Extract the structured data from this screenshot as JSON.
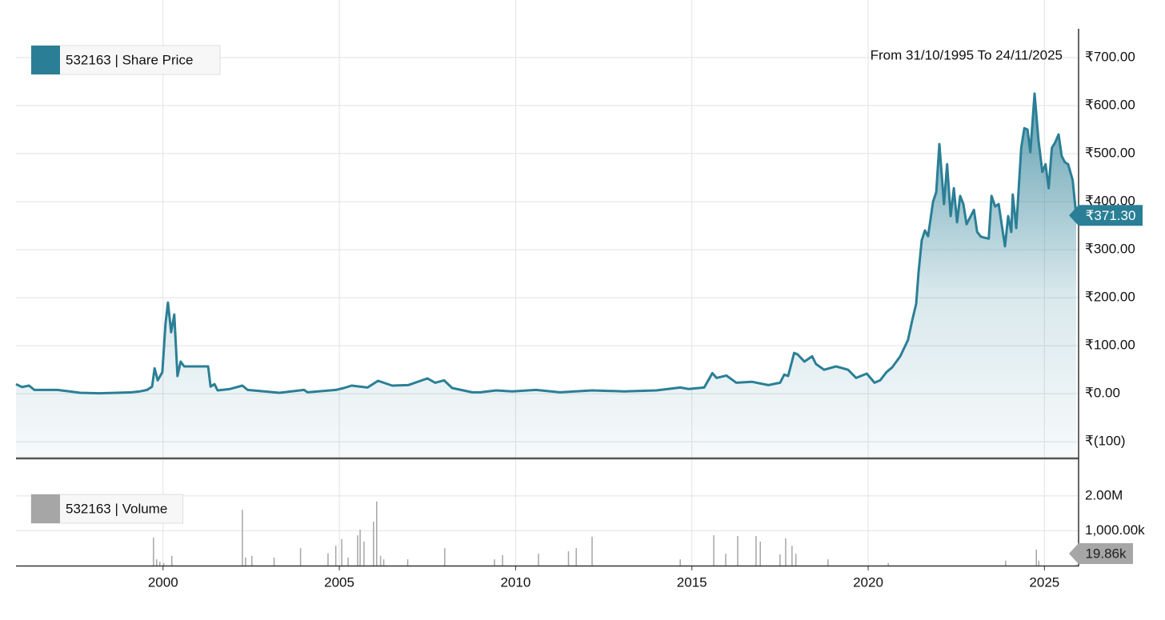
{
  "chart_data": [
    {
      "type": "area",
      "date_range": "From 31/10/1995 To 24/11/2025",
      "x": [
        1995.83,
        1996.0,
        1996.2,
        1996.35,
        1996.45,
        1997.0,
        1997.55,
        1997.65,
        1998.2,
        1998.7,
        1999.1,
        1999.35,
        1999.55,
        1999.69,
        1999.76,
        1999.85,
        1999.98,
        2000.07,
        2000.14,
        2000.23,
        2000.32,
        2000.41,
        2000.5,
        2000.6,
        2001.28,
        2001.35,
        2001.46,
        2001.55,
        2001.9,
        2002.25,
        2002.4,
        2002.87,
        2003.3,
        2004.0,
        2004.1,
        2004.9,
        2005.13,
        2005.35,
        2005.8,
        2006.1,
        2006.5,
        2006.95,
        2007.5,
        2007.72,
        2007.97,
        2008.2,
        2008.77,
        2009.0,
        2009.45,
        2009.9,
        2010.58,
        2011.26,
        2012.17,
        2013.08,
        2013.99,
        2014.67,
        2014.9,
        2015.35,
        2015.58,
        2015.7,
        2015.98,
        2016.26,
        2016.7,
        2017.17,
        2017.5,
        2017.62,
        2017.73,
        2017.9,
        2018.0,
        2018.19,
        2018.41,
        2018.52,
        2018.75,
        2019.09,
        2019.43,
        2019.66,
        2019.96,
        2020.18,
        2020.34,
        2020.52,
        2020.68,
        2020.91,
        2021.13,
        2021.25,
        2021.36,
        2021.43,
        2021.52,
        2021.61,
        2021.7,
        2021.84,
        2021.93,
        2022.02,
        2022.15,
        2022.24,
        2022.34,
        2022.43,
        2022.52,
        2022.61,
        2022.7,
        2022.79,
        2023.0,
        2023.09,
        2023.2,
        2023.42,
        2023.5,
        2023.6,
        2023.7,
        2023.88,
        2023.97,
        2024.06,
        2024.1,
        2024.2,
        2024.34,
        2024.43,
        2024.52,
        2024.6,
        2024.72,
        2024.83,
        2024.94,
        2025.03,
        2025.12,
        2025.21,
        2025.3,
        2025.4,
        2025.49,
        2025.58,
        2025.67,
        2025.8,
        2025.9
      ],
      "series": [
        {
          "name": "532163 | Share Price",
          "color": "#2a7f96",
          "values": [
            20,
            14,
            17,
            8,
            8,
            8,
            3,
            2,
            1,
            2,
            3,
            5,
            8,
            15,
            53,
            28,
            45,
            145,
            190,
            128,
            165,
            37,
            67,
            57,
            57,
            15,
            20,
            7,
            10,
            17,
            8,
            5,
            2,
            8,
            3,
            8,
            12,
            17,
            13,
            27,
            17,
            18,
            32,
            23,
            28,
            12,
            3,
            3,
            7,
            5,
            8,
            3,
            7,
            5,
            7,
            13,
            10,
            13,
            43,
            33,
            38,
            23,
            25,
            18,
            23,
            40,
            37,
            85,
            82,
            67,
            78,
            62,
            50,
            57,
            50,
            33,
            42,
            23,
            28,
            45,
            55,
            78,
            112,
            153,
            187,
            253,
            320,
            340,
            328,
            400,
            420,
            520,
            395,
            478,
            370,
            428,
            357,
            412,
            395,
            353,
            383,
            337,
            327,
            323,
            412,
            390,
            395,
            307,
            370,
            337,
            415,
            345,
            512,
            553,
            550,
            503,
            625,
            528,
            462,
            478,
            428,
            512,
            523,
            540,
            495,
            482,
            478,
            445,
            371.3
          ]
        }
      ],
      "last_value": {
        "value": 371.3,
        "label": "₹371.30"
      },
      "xlim": [
        1995.83,
        2025.9
      ],
      "xticks": [
        2000,
        2005,
        2010,
        2015,
        2020,
        2025
      ],
      "ylim": [
        -133,
        760
      ],
      "yticks": [
        {
          "value": -100,
          "label": "₹(100)"
        },
        {
          "value": 0,
          "label": "₹0.00"
        },
        {
          "value": 100,
          "label": "₹100.00"
        },
        {
          "value": 200,
          "label": "₹200.00"
        },
        {
          "value": 300,
          "label": "₹300.00"
        },
        {
          "value": 400,
          "label": "₹400.00"
        },
        {
          "value": 500,
          "label": "₹500.00"
        },
        {
          "value": 600,
          "label": "₹600.00"
        },
        {
          "value": 700,
          "label": "₹700.00"
        }
      ],
      "grid": true
    },
    {
      "type": "bar",
      "x": [
        1999.73,
        1999.82,
        1999.91,
        2000.02,
        2000.25,
        2002.25,
        2002.34,
        2002.52,
        2003.15,
        2003.9,
        2004.68,
        2004.9,
        2005.07,
        2005.25,
        2005.52,
        2005.59,
        2005.7,
        2005.97,
        2006.06,
        2006.17,
        2006.26,
        2006.94,
        2007.99,
        2009.4,
        2009.63,
        2010.65,
        2011.5,
        2011.72,
        2012.17,
        2014.67,
        2015.62,
        2015.96,
        2016.3,
        2016.82,
        2016.94,
        2017.5,
        2017.66,
        2017.84,
        2017.95,
        2018.86,
        2020.57,
        2023.9,
        2024.77,
        2024.84,
        2025.9
      ],
      "series": [
        {
          "name": "532163 | Volume",
          "color": "#a6a6a6",
          "values": [
            800000,
            180000,
            110000,
            70000,
            280000,
            1600000,
            230000,
            280000,
            230000,
            500000,
            350000,
            570000,
            760000,
            230000,
            870000,
            1030000,
            690000,
            1260000,
            1840000,
            280000,
            180000,
            180000,
            500000,
            180000,
            300000,
            340000,
            410000,
            500000,
            830000,
            180000,
            870000,
            340000,
            850000,
            850000,
            690000,
            320000,
            780000,
            570000,
            340000,
            180000,
            70000,
            140000,
            460000,
            140000,
            19860
          ]
        }
      ],
      "last_value": {
        "value": 19860,
        "label": "19.86k"
      },
      "xlim": [
        1995.83,
        2025.9
      ],
      "xticks": [
        2000,
        2005,
        2010,
        2015,
        2020,
        2025
      ],
      "ylim": [
        0,
        3030000
      ],
      "yticks": [
        {
          "value": 1000000,
          "label": "1,000.00k"
        },
        {
          "value": 2000000,
          "label": "2.00M"
        }
      ],
      "grid": true
    }
  ]
}
